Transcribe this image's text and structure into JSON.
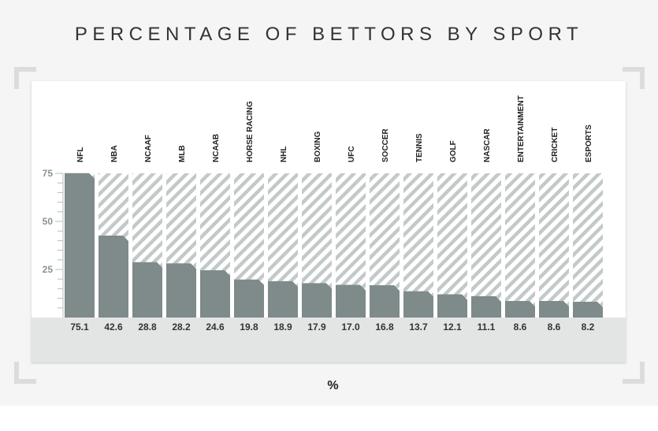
{
  "title": "PERCENTAGE OF BETTORS BY SPORT",
  "chart_data": {
    "type": "bar",
    "title": "PERCENTAGE OF BETTORS BY SPORT",
    "xlabel": "%",
    "ylabel": "",
    "ylim": [
      0,
      75
    ],
    "yticks": [
      25,
      50,
      75
    ],
    "categories": [
      "NFL",
      "NBA",
      "NCAAF",
      "MLB",
      "NCAAB",
      "HORSE RACING",
      "NHL",
      "BOXING",
      "UFC",
      "SOCCER",
      "TENNIS",
      "GOLF",
      "NASCAR",
      "ENTERTAINMENT",
      "CRICKET",
      "ESPORTS"
    ],
    "values": [
      75.1,
      42.6,
      28.8,
      28.2,
      24.6,
      19.8,
      18.9,
      17.9,
      17.0,
      16.8,
      13.7,
      12.1,
      11.1,
      8.6,
      8.6,
      8.2
    ],
    "value_labels": [
      "75.1",
      "42.6",
      "28.8",
      "28.2",
      "24.6",
      "19.8",
      "18.9",
      "17.9",
      "17.0",
      "16.8",
      "13.7",
      "12.1",
      "11.1",
      "8.6",
      "8.6",
      "8.2"
    ],
    "bar_color": "#7f8a8a",
    "background_pattern": "diagonal-hatch",
    "grid": false
  }
}
